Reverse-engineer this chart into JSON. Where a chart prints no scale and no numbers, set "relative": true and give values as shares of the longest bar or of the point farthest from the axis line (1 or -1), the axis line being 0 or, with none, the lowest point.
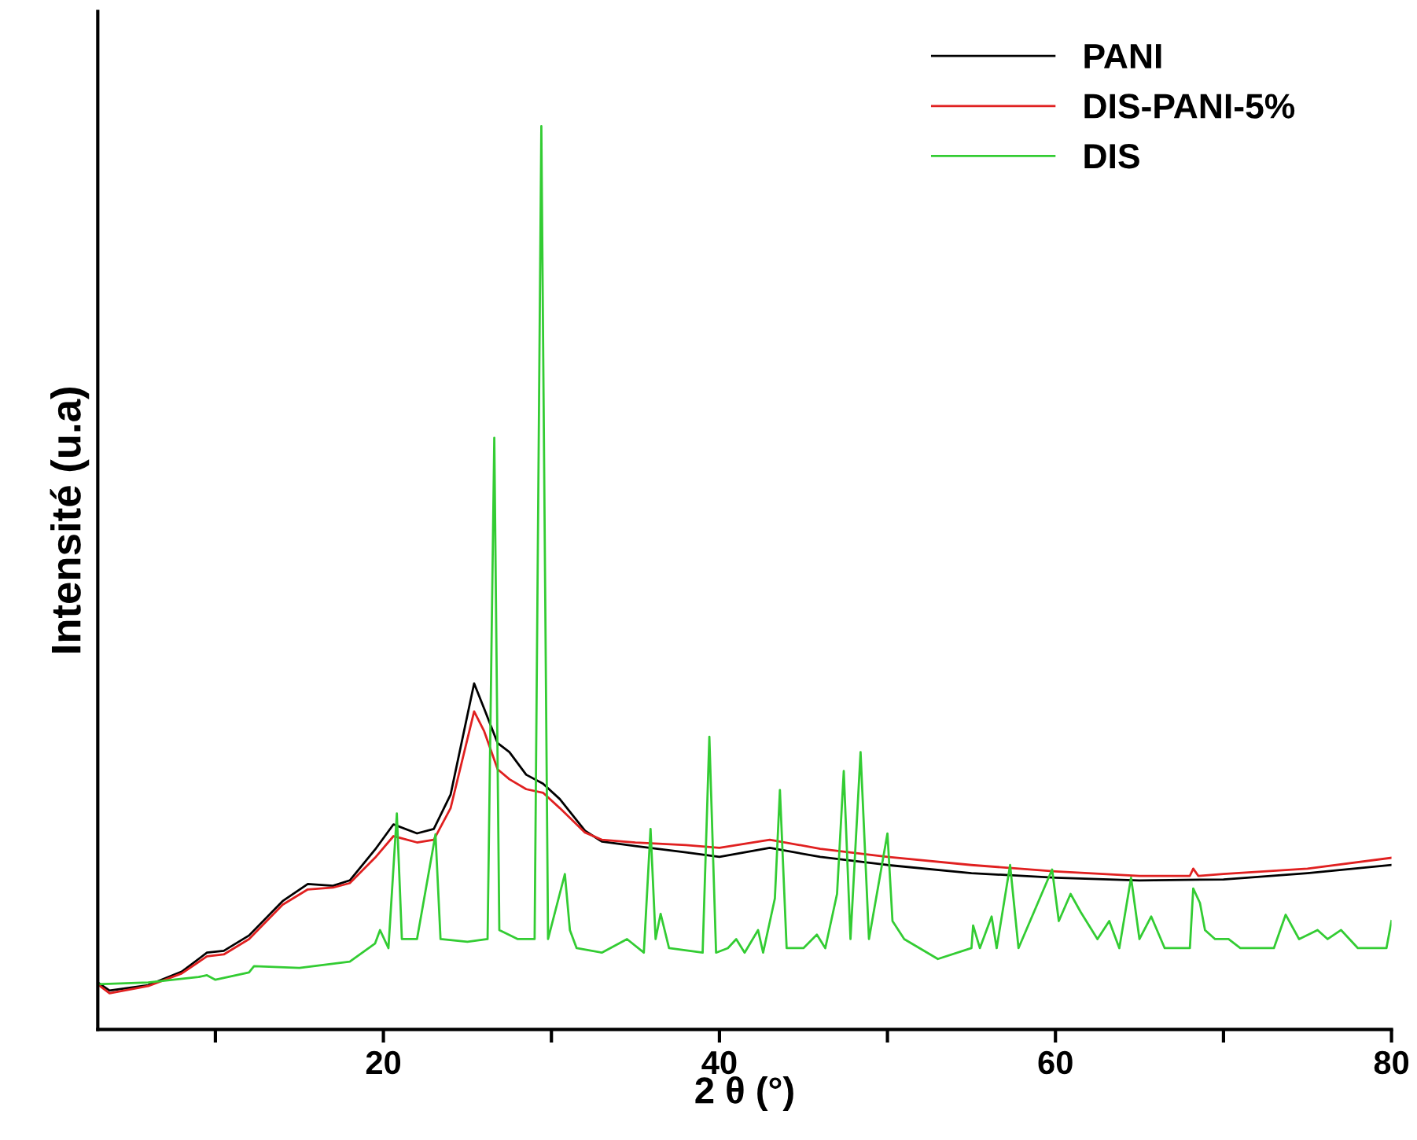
{
  "chart_data": {
    "type": "line",
    "relative": true,
    "xlabel": "2 θ (°)",
    "ylabel": "Intensité (u.a)",
    "xlim": [
      3,
      80
    ],
    "xticks": [
      {
        "value": 10,
        "label": null
      },
      20,
      {
        "value": 30,
        "label": null
      },
      40,
      {
        "value": 50,
        "label": null
      },
      60,
      {
        "value": 70,
        "label": null
      },
      80
    ],
    "legend": "top right",
    "grid": false,
    "marker": "none",
    "line_style": "solid",
    "series": [
      {
        "name": "PANI",
        "color": "#000000",
        "x": [
          3,
          3.7,
          6,
          8,
          9.5,
          10.5,
          12,
          14,
          15.5,
          17,
          18,
          19.5,
          20.6,
          22,
          23,
          24,
          25.4,
          26,
          26.8,
          27.5,
          28.5,
          29.5,
          30.5,
          32,
          33,
          35,
          38,
          40,
          43,
          46,
          50,
          55,
          60,
          65,
          70,
          75,
          80
        ],
        "values": [
          0.052,
          0.043,
          0.049,
          0.064,
          0.085,
          0.087,
          0.104,
          0.142,
          0.161,
          0.159,
          0.165,
          0.199,
          0.227,
          0.217,
          0.222,
          0.26,
          0.383,
          0.355,
          0.317,
          0.307,
          0.282,
          0.272,
          0.255,
          0.22,
          0.208,
          0.203,
          0.196,
          0.191,
          0.201,
          0.191,
          0.182,
          0.173,
          0.168,
          0.165,
          0.166,
          0.173,
          0.182
        ]
      },
      {
        "name": "DIS-PANI-5%",
        "color": "#e02020",
        "x": [
          3,
          3.7,
          6,
          8,
          9.5,
          10.5,
          12,
          14,
          15.5,
          17,
          18,
          19.5,
          20.6,
          22,
          23,
          24,
          25.4,
          26,
          26.8,
          27.5,
          28.5,
          29.5,
          30.5,
          32,
          33,
          35,
          38,
          40,
          43,
          46,
          50,
          55,
          60,
          65,
          68,
          68.2,
          68.5,
          70,
          75,
          80
        ],
        "values": [
          0.05,
          0.04,
          0.048,
          0.062,
          0.081,
          0.083,
          0.1,
          0.138,
          0.155,
          0.157,
          0.162,
          0.19,
          0.214,
          0.207,
          0.21,
          0.245,
          0.352,
          0.33,
          0.288,
          0.277,
          0.266,
          0.262,
          0.245,
          0.218,
          0.21,
          0.207,
          0.204,
          0.201,
          0.21,
          0.2,
          0.191,
          0.182,
          0.175,
          0.17,
          0.17,
          0.178,
          0.17,
          0.172,
          0.178,
          0.19
        ]
      },
      {
        "name": "DIS",
        "color": "#33cc33",
        "x": [
          3,
          6,
          9,
          9.5,
          10,
          12,
          12.3,
          15,
          18,
          19.5,
          19.8,
          20.3,
          20.8,
          21.1,
          22,
          23.1,
          23.4,
          25,
          26.2,
          26.6,
          26.9,
          28,
          29,
          29.4,
          29.8,
          30.8,
          31.1,
          31.5,
          33,
          34.5,
          35.5,
          35.9,
          36.2,
          36.5,
          37,
          39,
          39.4,
          39.8,
          40.5,
          41,
          41.5,
          42.3,
          42.6,
          43.3,
          43.6,
          44,
          45,
          45.8,
          46.3,
          47,
          47.4,
          47.8,
          48.4,
          48.9,
          50,
          50.3,
          51,
          53,
          55,
          55.1,
          55.5,
          56.2,
          56.5,
          57.3,
          57.8,
          59.8,
          60.2,
          60.9,
          61.5,
          62.5,
          63.2,
          63.8,
          64.5,
          65,
          65.7,
          66.5,
          68,
          68.2,
          68.6,
          68.9,
          69.5,
          70.3,
          71,
          73,
          73.7,
          74.5,
          75.6,
          76.2,
          77,
          78,
          79.7,
          80
        ],
        "values": [
          0.05,
          0.052,
          0.058,
          0.06,
          0.055,
          0.063,
          0.07,
          0.068,
          0.075,
          0.095,
          0.11,
          0.09,
          0.239,
          0.1,
          0.1,
          0.216,
          0.1,
          0.097,
          0.1,
          0.655,
          0.11,
          0.1,
          0.1,
          1,
          0.1,
          0.172,
          0.11,
          0.09,
          0.085,
          0.1,
          0.085,
          0.222,
          0.1,
          0.128,
          0.09,
          0.085,
          0.324,
          0.085,
          0.09,
          0.1,
          0.085,
          0.11,
          0.085,
          0.145,
          0.265,
          0.09,
          0.09,
          0.105,
          0.09,
          0.15,
          0.286,
          0.1,
          0.307,
          0.1,
          0.217,
          0.12,
          0.1,
          0.078,
          0.09,
          0.115,
          0.09,
          0.125,
          0.09,
          0.182,
          0.09,
          0.177,
          0.12,
          0.15,
          0.13,
          0.1,
          0.12,
          0.09,
          0.168,
          0.1,
          0.125,
          0.09,
          0.09,
          0.156,
          0.14,
          0.11,
          0.1,
          0.1,
          0.09,
          0.09,
          0.127,
          0.1,
          0.11,
          0.1,
          0.11,
          0.09,
          0.09,
          0.12
        ]
      }
    ]
  }
}
